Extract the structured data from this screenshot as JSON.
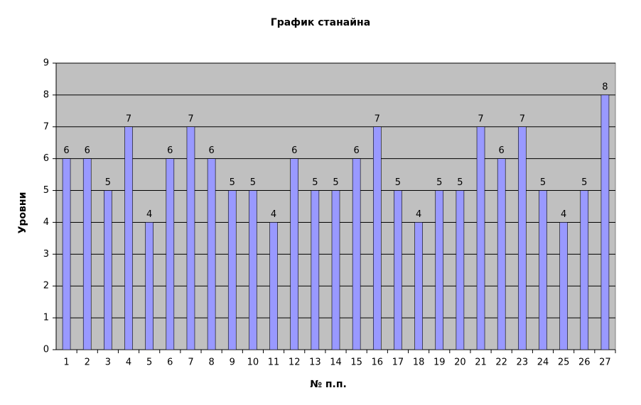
{
  "chart_data": {
    "type": "bar",
    "title": "График станайна",
    "x_label": "№ п.п.",
    "y_label": "Уровни",
    "categories": [
      "1",
      "2",
      "3",
      "4",
      "5",
      "6",
      "7",
      "8",
      "9",
      "10",
      "11",
      "12",
      "13",
      "14",
      "15",
      "16",
      "17",
      "18",
      "19",
      "20",
      "21",
      "22",
      "23",
      "24",
      "25",
      "26",
      "27"
    ],
    "values": [
      6,
      6,
      5,
      7,
      4,
      6,
      7,
      6,
      5,
      5,
      4,
      6,
      5,
      5,
      6,
      7,
      5,
      4,
      5,
      5,
      7,
      6,
      7,
      5,
      4,
      5,
      8
    ],
    "color": "#9999ff",
    "plot_background": "#c0c0c0",
    "ylim": [
      0,
      9
    ],
    "yticks": [
      0,
      1,
      2,
      3,
      4,
      5,
      6,
      7,
      8,
      9
    ],
    "grid": true,
    "data_labels": true
  }
}
